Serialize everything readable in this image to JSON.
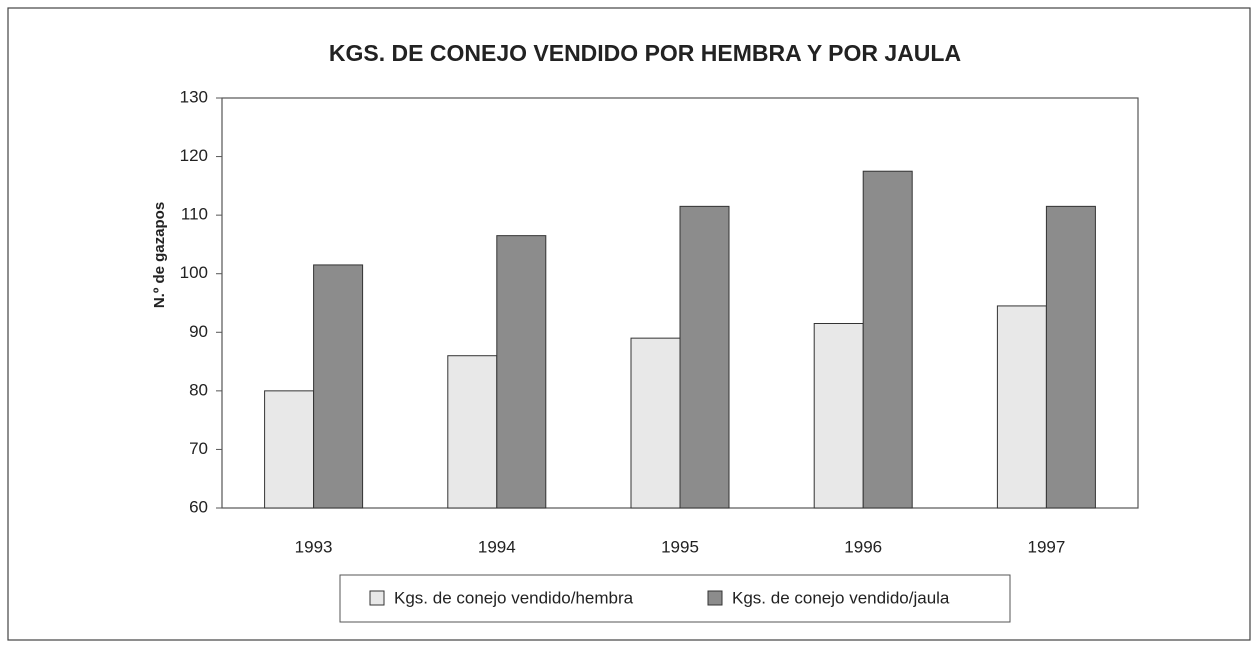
{
  "chart_data": {
    "type": "bar",
    "title": "KGS. DE CONEJO VENDIDO POR HEMBRA Y POR JAULA",
    "y_label": "N.º de gazapos",
    "categories": [
      "1993",
      "1994",
      "1995",
      "1996",
      "1997"
    ],
    "series": [
      {
        "name": "Kgs. de conejo vendido/hembra",
        "color": "#e8e8e8",
        "values": [
          80,
          86,
          89,
          91.5,
          94.5
        ]
      },
      {
        "name": "Kgs. de conejo vendido/jaula",
        "color": "#8c8c8c",
        "values": [
          101.5,
          106.5,
          111.5,
          117.5,
          111.5
        ]
      }
    ],
    "ylim": [
      60,
      130
    ],
    "yticks": [
      60,
      70,
      80,
      90,
      100,
      110,
      120,
      130
    ],
    "grid": false,
    "legend": "bottom"
  }
}
